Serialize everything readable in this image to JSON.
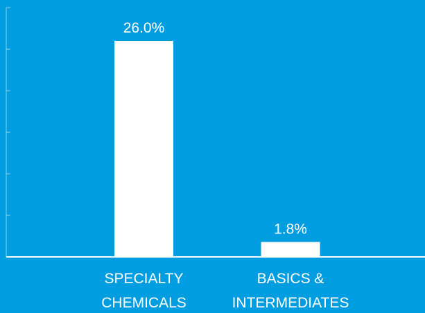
{
  "colors": {
    "background": "#009ee0",
    "bar": "#ffffff",
    "axis": "#ffffff",
    "text": "#ffffff"
  },
  "chart_data": {
    "type": "bar",
    "categories": [
      [
        "SPECIALTY",
        "CHEMICALS"
      ],
      [
        "BASICS &",
        "INTERMEDIATES"
      ]
    ],
    "values": [
      26.0,
      1.8
    ],
    "value_labels": [
      "26.0%",
      "1.8%"
    ],
    "title": "",
    "xlabel": "",
    "ylabel": "",
    "ylim": [
      0,
      30
    ],
    "grid": false,
    "y_tick_labels_shown": false
  }
}
